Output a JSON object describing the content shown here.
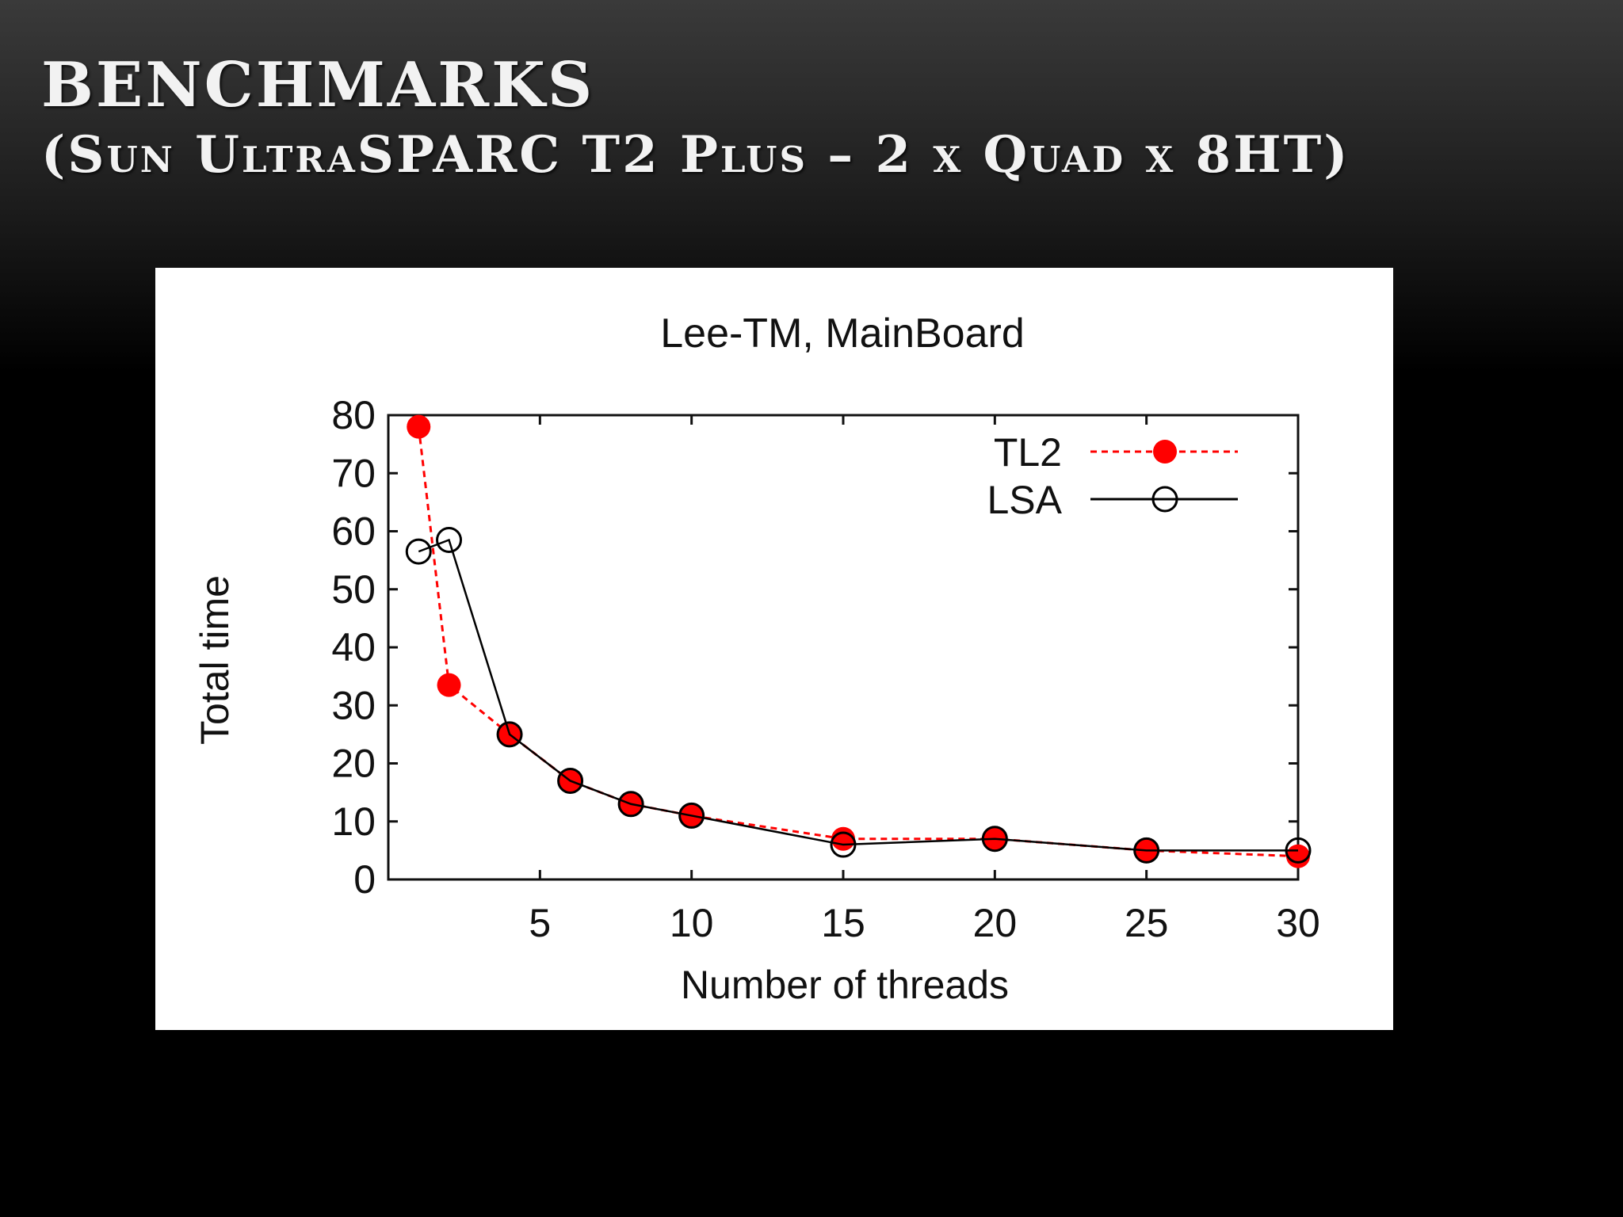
{
  "slide": {
    "title_line1": "Benchmarks",
    "title_line2": "(Sun UltraSPARC T2 Plus – 2 x Quad x 8HT)"
  },
  "chart_data": {
    "type": "line",
    "title": "Lee-TM, MainBoard",
    "xlabel": "Number of threads",
    "ylabel": "Total time",
    "xlim": [
      0,
      30
    ],
    "ylim": [
      0,
      80
    ],
    "xticks": [
      5,
      10,
      15,
      20,
      25,
      30
    ],
    "yticks": [
      0,
      10,
      20,
      30,
      40,
      50,
      60,
      70,
      80
    ],
    "grid": false,
    "legend_position": "top-right",
    "series": [
      {
        "name": "TL2",
        "color": "#ff0000",
        "line_style": "dashed",
        "marker": "filled-circle",
        "x": [
          1,
          2,
          4,
          6,
          8,
          10,
          15,
          20,
          25,
          30
        ],
        "y": [
          78,
          33.5,
          25,
          17,
          13,
          11,
          7,
          7,
          5,
          4
        ]
      },
      {
        "name": "LSA",
        "color": "#000000",
        "line_style": "solid",
        "marker": "open-circle",
        "x": [
          1,
          2,
          4,
          6,
          8,
          10,
          15,
          20,
          25,
          30
        ],
        "y": [
          56.5,
          58.5,
          25,
          17,
          13,
          11,
          6,
          7,
          5,
          5
        ]
      }
    ]
  }
}
